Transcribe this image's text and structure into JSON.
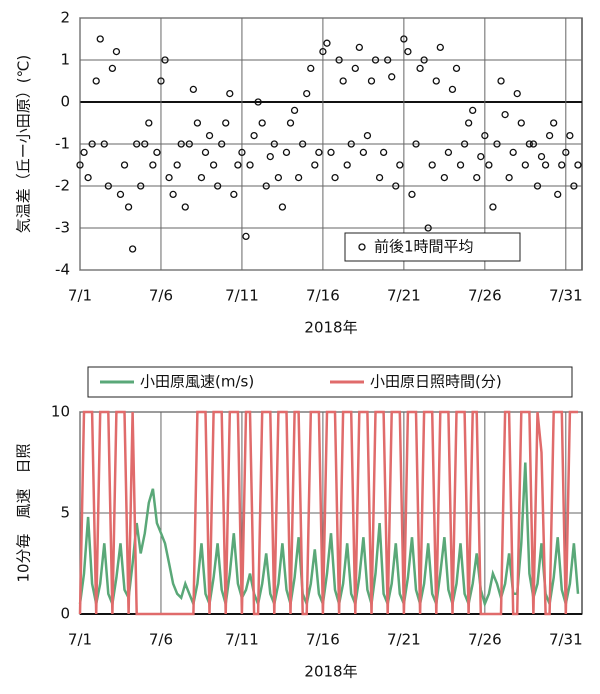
{
  "chart_data": [
    {
      "type": "scatter",
      "y_label": "気温差（丘ー小田原）(℃)",
      "x_label": "2018年",
      "xlim": [
        1,
        32
      ],
      "ylim": [
        -4,
        2
      ],
      "xticks": [
        {
          "value": 1,
          "label": "7/1"
        },
        {
          "value": 6,
          "label": "7/6"
        },
        {
          "value": 11,
          "label": "7/11"
        },
        {
          "value": 16,
          "label": "7/16"
        },
        {
          "value": 21,
          "label": "7/21"
        },
        {
          "value": 26,
          "label": "7/26"
        },
        {
          "value": 31,
          "label": "7/31"
        }
      ],
      "yticks": [
        -4,
        -3,
        -2,
        -1,
        0,
        1,
        2
      ],
      "grid": true,
      "legend": "lower right",
      "x": [
        1,
        1.25,
        1.5,
        1.75,
        2,
        2.25,
        2.5,
        2.75,
        3,
        3.25,
        3.5,
        3.75,
        4,
        4.25,
        4.5,
        4.75,
        5,
        5.25,
        5.5,
        5.75,
        6,
        6.25,
        6.5,
        6.75,
        7,
        7.25,
        7.5,
        7.75,
        8,
        8.25,
        8.5,
        8.75,
        9,
        9.25,
        9.5,
        9.75,
        10,
        10.25,
        10.5,
        10.75,
        11,
        11.25,
        11.5,
        11.75,
        12,
        12.25,
        12.5,
        12.75,
        13,
        13.25,
        13.5,
        13.75,
        14,
        14.25,
        14.5,
        14.75,
        15,
        15.25,
        15.5,
        15.75,
        16,
        16.25,
        16.5,
        16.75,
        17,
        17.25,
        17.5,
        17.75,
        18,
        18.25,
        18.5,
        18.75,
        19,
        19.25,
        19.5,
        19.75,
        20,
        20.25,
        20.5,
        20.75,
        21,
        21.25,
        21.5,
        21.75,
        22,
        22.25,
        22.5,
        22.75,
        23,
        23.25,
        23.5,
        23.75,
        24,
        24.25,
        24.5,
        24.75,
        25,
        25.25,
        25.5,
        25.75,
        26,
        26.25,
        26.5,
        26.75,
        27,
        27.25,
        27.5,
        27.75,
        28,
        28.25,
        28.5,
        28.75,
        29,
        29.25,
        29.5,
        29.75,
        30,
        30.25,
        30.5,
        30.75,
        31,
        31.25,
        31.5,
        31.75
      ],
      "series": [
        {
          "name": "前後1時間平均",
          "color": "#111111",
          "values": [
            -1.5,
            -1.2,
            -1.8,
            -1.0,
            0.5,
            1.5,
            -1.0,
            -2.0,
            0.8,
            1.2,
            -2.2,
            -1.5,
            -2.5,
            -3.5,
            -1.0,
            -2.0,
            -1.0,
            -0.5,
            -1.5,
            -1.2,
            0.5,
            1.0,
            -1.8,
            -2.2,
            -1.5,
            -1.0,
            -2.5,
            -1.0,
            0.3,
            -0.5,
            -1.8,
            -1.2,
            -0.8,
            -1.5,
            -2.0,
            -1.0,
            -0.5,
            0.2,
            -2.2,
            -1.5,
            -1.2,
            -3.2,
            -1.5,
            -0.8,
            0.0,
            -0.5,
            -2.0,
            -1.3,
            -1.0,
            -1.8,
            -2.5,
            -1.2,
            -0.5,
            -0.2,
            -1.8,
            -1.0,
            0.2,
            0.8,
            -1.5,
            -1.2,
            1.2,
            1.4,
            -1.2,
            -1.8,
            1.0,
            0.5,
            -1.5,
            -1.0,
            0.8,
            1.3,
            -1.2,
            -0.8,
            0.5,
            1.0,
            -1.8,
            -1.2,
            1.0,
            0.6,
            -2.0,
            -1.5,
            1.5,
            1.2,
            -2.2,
            -1.0,
            0.8,
            1.0,
            -3.0,
            -1.5,
            0.5,
            1.3,
            -1.8,
            -1.2,
            0.3,
            0.8,
            -1.5,
            -1.0,
            -0.5,
            -0.2,
            -1.8,
            -1.3,
            -0.8,
            -1.5,
            -2.5,
            -1.0,
            0.5,
            -0.3,
            -1.8,
            -1.2,
            0.2,
            -0.5,
            -1.5,
            -1.0,
            -1.0,
            -2.0,
            -1.3,
            -1.5,
            -0.8,
            -0.5,
            -2.2,
            -1.5,
            -1.2,
            -0.8,
            -2.0,
            -1.5
          ]
        }
      ]
    },
    {
      "type": "line",
      "y_label": "10分毎　風速　日照",
      "x_label": "2018年",
      "xlim": [
        1,
        32
      ],
      "ylim": [
        0,
        10
      ],
      "xticks": [
        {
          "value": 1,
          "label": "7/1"
        },
        {
          "value": 6,
          "label": "7/6"
        },
        {
          "value": 11,
          "label": "7/11"
        },
        {
          "value": 16,
          "label": "7/16"
        },
        {
          "value": 21,
          "label": "7/21"
        },
        {
          "value": 26,
          "label": "7/26"
        },
        {
          "value": 31,
          "label": "7/31"
        }
      ],
      "yticks": [
        0,
        5,
        10
      ],
      "grid": true,
      "legend": "top",
      "x": [
        1,
        1.25,
        1.5,
        1.75,
        2,
        2.25,
        2.5,
        2.75,
        3,
        3.25,
        3.5,
        3.75,
        4,
        4.25,
        4.5,
        4.75,
        5,
        5.25,
        5.5,
        5.75,
        6,
        6.25,
        6.5,
        6.75,
        7,
        7.25,
        7.5,
        7.75,
        8,
        8.25,
        8.5,
        8.75,
        9,
        9.25,
        9.5,
        9.75,
        10,
        10.25,
        10.5,
        10.75,
        11,
        11.25,
        11.5,
        11.75,
        12,
        12.25,
        12.5,
        12.75,
        13,
        13.25,
        13.5,
        13.75,
        14,
        14.25,
        14.5,
        14.75,
        15,
        15.25,
        15.5,
        15.75,
        16,
        16.25,
        16.5,
        16.75,
        17,
        17.25,
        17.5,
        17.75,
        18,
        18.25,
        18.5,
        18.75,
        19,
        19.25,
        19.5,
        19.75,
        20,
        20.25,
        20.5,
        20.75,
        21,
        21.25,
        21.5,
        21.75,
        22,
        22.25,
        22.5,
        22.75,
        23,
        23.25,
        23.5,
        23.75,
        24,
        24.25,
        24.5,
        24.75,
        25,
        25.25,
        25.5,
        25.75,
        26,
        26.25,
        26.5,
        26.75,
        27,
        27.25,
        27.5,
        27.75,
        28,
        28.25,
        28.5,
        28.75,
        29,
        29.25,
        29.5,
        29.75,
        30,
        30.25,
        30.5,
        30.75,
        31,
        31.25,
        31.5,
        31.75
      ],
      "series": [
        {
          "name": "小田原風速(m/s)",
          "color": "#5aa878",
          "values": [
            0.5,
            2.0,
            4.8,
            1.5,
            0.5,
            1.5,
            3.5,
            1.0,
            0.5,
            1.8,
            3.5,
            1.2,
            0.8,
            2.5,
            4.5,
            3.0,
            4.0,
            5.5,
            6.2,
            4.5,
            4.0,
            3.5,
            2.5,
            1.5,
            1.0,
            0.8,
            1.5,
            1.0,
            0.5,
            1.5,
            3.5,
            1.0,
            0.5,
            1.8,
            3.5,
            1.2,
            0.5,
            2.0,
            4.0,
            1.5,
            0.8,
            1.2,
            2.0,
            1.0,
            0.5,
            1.5,
            3.0,
            1.0,
            0.5,
            1.5,
            3.5,
            1.2,
            0.5,
            1.8,
            3.8,
            1.0,
            0.5,
            1.5,
            3.2,
            1.0,
            0.5,
            2.0,
            4.0,
            1.2,
            0.5,
            1.5,
            3.5,
            1.0,
            0.5,
            1.8,
            3.8,
            1.2,
            0.5,
            2.0,
            4.5,
            1.0,
            0.5,
            1.5,
            3.5,
            1.0,
            0.5,
            1.8,
            3.8,
            1.2,
            0.5,
            1.5,
            3.5,
            1.0,
            0.5,
            2.0,
            3.8,
            1.2,
            0.5,
            1.5,
            3.5,
            1.0,
            0.5,
            1.5,
            3.0,
            1.2,
            0.5,
            1.0,
            2.0,
            1.5,
            0.8,
            1.5,
            3.0,
            1.0,
            1.0,
            3.5,
            7.5,
            2.0,
            0.8,
            1.5,
            3.5,
            1.0,
            0.5,
            1.8,
            3.8,
            1.2,
            0.5,
            1.5,
            3.5,
            1.0
          ]
        },
        {
          "name": "小田原日照時間(分)",
          "color": "#e06b6b",
          "values": [
            0,
            10,
            10,
            10,
            0,
            10,
            10,
            10,
            0,
            10,
            10,
            10,
            0,
            10,
            0,
            0,
            0,
            0,
            0,
            0,
            0,
            0,
            0,
            0,
            0,
            0,
            0,
            0,
            0,
            10,
            10,
            10,
            0,
            10,
            10,
            10,
            0,
            10,
            10,
            10,
            0,
            10,
            10,
            0,
            0,
            10,
            10,
            10,
            0,
            10,
            10,
            10,
            0,
            10,
            10,
            0,
            0,
            10,
            10,
            10,
            0,
            10,
            10,
            10,
            0,
            10,
            10,
            10,
            0,
            10,
            10,
            10,
            0,
            10,
            10,
            10,
            0,
            10,
            10,
            10,
            0,
            10,
            10,
            10,
            0,
            10,
            10,
            10,
            0,
            10,
            10,
            10,
            0,
            10,
            10,
            10,
            0,
            10,
            10,
            0,
            0,
            0,
            0,
            0,
            0,
            10,
            10,
            0,
            0,
            10,
            10,
            10,
            0,
            10,
            8,
            0,
            0,
            10,
            10,
            10,
            0,
            10,
            10,
            10
          ]
        }
      ]
    }
  ]
}
